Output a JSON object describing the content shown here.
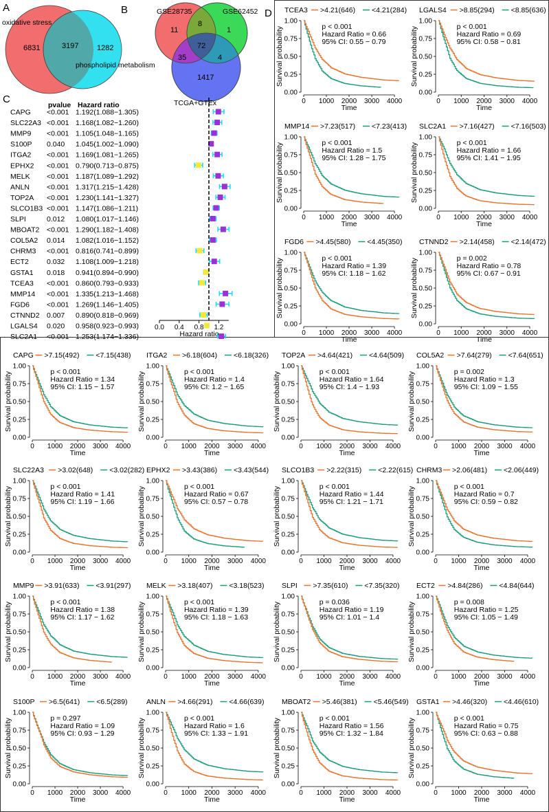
{
  "panel_labels": {
    "a": "A",
    "b": "B",
    "c": "C",
    "d": "D"
  },
  "colors": {
    "high": "#e8712b",
    "low": "#1a9b78",
    "venn_red": "#f26d6d",
    "venn_cyan": "#33e0f0",
    "venn_green": "#2fd84f",
    "venn_blue": "#5b6cf0",
    "hr_high": "#9b30d9",
    "hr_low": "#f3e93a",
    "hr_err": "#20d8f2"
  },
  "venn_a": {
    "set1_label": "oxidative stress",
    "set2_label": "phospholipid metabolism",
    "only1": "6831",
    "both": "3197",
    "only2": "1282"
  },
  "venn_b": {
    "set1_label": "GSE28735",
    "set2_label": "GSE62452",
    "set3_label": "TCGA+GTEx",
    "r1": "11",
    "r12": "8",
    "r2": "1",
    "r123": "72",
    "r13": "35",
    "r23": "4",
    "r3": "1417"
  },
  "chart_data": [
    {
      "type": "forest",
      "title": "",
      "col_pvalue": "pvalue",
      "col_hr": "Hazard ratio",
      "xlabel": "Hazard ratio",
      "xlim": [
        0.0,
        1.5
      ],
      "xticks": [
        "0.0",
        "0.4",
        "0.8",
        "1.2"
      ],
      "reference_line": 1.0,
      "rows": [
        {
          "gene": "CAPG",
          "p": "<0.001",
          "hr": 1.192,
          "lo": 1.088,
          "hi": 1.305,
          "text": "1.192(1.088−1.305)"
        },
        {
          "gene": "SLC22A3",
          "p": "<0.001",
          "hr": 1.168,
          "lo": 1.082,
          "hi": 1.26,
          "text": "1.168(1.082−1.260)"
        },
        {
          "gene": "MMP9",
          "p": "<0.001",
          "hr": 1.105,
          "lo": 1.048,
          "hi": 1.165,
          "text": "1.105(1.048−1.165)"
        },
        {
          "gene": "S100P",
          "p": "0.040",
          "hr": 1.045,
          "lo": 1.002,
          "hi": 1.09,
          "text": "1.045(1.002−1.090)"
        },
        {
          "gene": "ITGA2",
          "p": "<0.001",
          "hr": 1.169,
          "lo": 1.081,
          "hi": 1.265,
          "text": "1.169(1.081−1.265)"
        },
        {
          "gene": "EPHX2",
          "p": "<0.001",
          "hr": 0.79,
          "lo": 0.713,
          "hi": 0.875,
          "text": "0.790(0.713−0.875)"
        },
        {
          "gene": "MELK",
          "p": "<0.001",
          "hr": 1.187,
          "lo": 1.089,
          "hi": 1.292,
          "text": "1.187(1.089−1.292)"
        },
        {
          "gene": "ANLN",
          "p": "<0.001",
          "hr": 1.317,
          "lo": 1.215,
          "hi": 1.428,
          "text": "1.317(1.215−1.428)"
        },
        {
          "gene": "TOP2A",
          "p": "<0.001",
          "hr": 1.23,
          "lo": 1.141,
          "hi": 1.327,
          "text": "1.230(1.141−1.327)"
        },
        {
          "gene": "SLCO1B3",
          "p": "<0.001",
          "hr": 1.147,
          "lo": 1.086,
          "hi": 1.211,
          "text": "1.147(1.086−1.211)"
        },
        {
          "gene": "SLPI",
          "p": "0.012",
          "hr": 1.08,
          "lo": 1.017,
          "hi": 1.146,
          "text": "1.080(1.017−1.146)"
        },
        {
          "gene": "MBOAT2",
          "p": "<0.001",
          "hr": 1.29,
          "lo": 1.182,
          "hi": 1.408,
          "text": "1.290(1.182−1.408)"
        },
        {
          "gene": "COL5A2",
          "p": "0.014",
          "hr": 1.082,
          "lo": 1.016,
          "hi": 1.152,
          "text": "1.082(1.016−1.152)"
        },
        {
          "gene": "CHRM3",
          "p": "<0.001",
          "hr": 0.816,
          "lo": 0.741,
          "hi": 0.899,
          "text": "0.816(0.741−0.899)"
        },
        {
          "gene": "ECT2",
          "p": "0.032",
          "hr": 1.108,
          "lo": 1.009,
          "hi": 1.218,
          "text": "1.108(1.009−1.218)"
        },
        {
          "gene": "GSTA1",
          "p": "0.018",
          "hr": 0.941,
          "lo": 0.894,
          "hi": 0.99,
          "text": "0.941(0.894−0.990)"
        },
        {
          "gene": "TCEA3",
          "p": "<0.001",
          "hr": 0.86,
          "lo": 0.793,
          "hi": 0.933,
          "text": "0.860(0.793−0.933)"
        },
        {
          "gene": "MMP14",
          "p": "<0.001",
          "hr": 1.335,
          "lo": 1.213,
          "hi": 1.468,
          "text": "1.335(1.213−1.468)"
        },
        {
          "gene": "FGD6",
          "p": "<0.001",
          "hr": 1.269,
          "lo": 1.146,
          "hi": 1.405,
          "text": "1.269(1.146−1.405)"
        },
        {
          "gene": "CTNND2",
          "p": "0.007",
          "hr": 0.89,
          "lo": 0.818,
          "hi": 0.969,
          "text": "0.890(0.818−0.969)"
        },
        {
          "gene": "LGALS4",
          "p": "0.020",
          "hr": 0.958,
          "lo": 0.923,
          "hi": 0.993,
          "text": "0.958(0.923−0.993)"
        },
        {
          "gene": "SLC2A1",
          "p": "<0.001",
          "hr": 1.253,
          "lo": 1.174,
          "hi": 1.336,
          "text": "1.253(1.174−1.336)"
        }
      ]
    },
    {
      "type": "line",
      "subtype": "kaplan-meier",
      "ylabel": "Survival probability",
      "xlabel": "Time",
      "xlim": [
        0,
        4300
      ],
      "ylim": [
        0,
        1
      ],
      "xticks": [
        "0",
        "1000",
        "2000",
        "3000",
        "4000"
      ],
      "yticks": [
        "0.00",
        "0.25",
        "0.50",
        "0.75",
        "1.00"
      ],
      "plots": [
        {
          "gene": "TCEA3",
          "hi_label": ">4.21(646)",
          "lo_label": "<4.21(284)",
          "p_text": "p < 0.001",
          "hr_text": "Hazard Ratio = 0.66",
          "ci_text": "95% CI: 0.55 − 0.79",
          "hr": 0.66,
          "high_end": 4200,
          "low_end": 3400
        },
        {
          "gene": "LGALS4",
          "hi_label": ">8.85(294)",
          "lo_label": "<8.85(636)",
          "p_text": "p < 0.001",
          "hr_text": "Hazard Ratio = 0.69",
          "ci_text": "95% CI: 0.58 − 0.81",
          "hr": 0.69,
          "high_end": 4200,
          "low_end": 4150
        },
        {
          "gene": "MMP14",
          "hi_label": ">7.23(517)",
          "lo_label": "<7.23(413)",
          "p_text": "p < 0.001",
          "hr_text": "Hazard Ratio = 1.5",
          "ci_text": "95% CI: 1.28 − 1.75",
          "hr": 1.5,
          "high_end": 3500,
          "low_end": 4200
        },
        {
          "gene": "SLC2A1",
          "hi_label": ">7.16(427)",
          "lo_label": "<7.16(503)",
          "p_text": "p < 0.001",
          "hr_text": "Hazard Ratio = 1.66",
          "ci_text": "95% CI: 1.41 − 1.95",
          "hr": 1.66,
          "high_end": 4200,
          "low_end": 4200
        },
        {
          "gene": "FGD6",
          "hi_label": ">4.45(580)",
          "lo_label": "<4.45(350)",
          "p_text": "p < 0.001",
          "hr_text": "Hazard Ratio = 1.39",
          "ci_text": "95% CI: 1.18 − 1.62",
          "hr": 1.39,
          "high_end": 4200,
          "low_end": 4200
        },
        {
          "gene": "CTNND2",
          "hi_label": ">2.14(458)",
          "lo_label": "<2.14(472)",
          "p_text": "p = 0.002",
          "hr_text": "Hazard Ratio = 0.78",
          "ci_text": "95% CI: 0.67 − 0.91",
          "hr": 0.78,
          "high_end": 4200,
          "low_end": 4200
        },
        {
          "gene": "CAPG",
          "hi_label": ">7.15(492)",
          "lo_label": "<7.15(438)",
          "p_text": "p < 0.001",
          "hr_text": "Hazard Ratio = 1.34",
          "ci_text": "95% CI: 1.15 − 1.57",
          "hr": 1.34,
          "high_end": 4200,
          "low_end": 4200
        },
        {
          "gene": "ITGA2",
          "hi_label": ">6.18(604)",
          "lo_label": "<6.18(326)",
          "p_text": "p < 0.001",
          "hr_text": "Hazard Ratio = 1.4",
          "ci_text": "95% CI: 1.2 − 1.65",
          "hr": 1.4,
          "high_end": 4200,
          "low_end": 4200
        },
        {
          "gene": "TOP2A",
          "hi_label": ">4.64(421)",
          "lo_label": "<4.64(509)",
          "p_text": "p < 0.001",
          "hr_text": "Hazard Ratio = 1.64",
          "ci_text": "95% CI: 1.4 − 1.93",
          "hr": 1.64,
          "high_end": 4200,
          "low_end": 4200
        },
        {
          "gene": "COL5A2",
          "hi_label": ">7.64(279)",
          "lo_label": "<7.64(651)",
          "p_text": "p = 0.002",
          "hr_text": "Hazard Ratio = 1.3",
          "ci_text": "95% CI: 1.09 − 1.55",
          "hr": 1.3,
          "high_end": 4200,
          "low_end": 4200
        },
        {
          "gene": "SLC22A3",
          "hi_label": ">3.02(648)",
          "lo_label": "<3.02(282)",
          "p_text": "p < 0.001",
          "hr_text": "Hazard Ratio = 1.41",
          "ci_text": "95% CI: 1.19 − 1.66",
          "hr": 1.41,
          "high_end": 4200,
          "low_end": 4200
        },
        {
          "gene": "EPHX2",
          "hi_label": ">3.43(386)",
          "lo_label": "<3.43(544)",
          "p_text": "p < 0.001",
          "hr_text": "Hazard Ratio = 0.67",
          "ci_text": "95% CI: 0.57 − 0.78",
          "hr": 0.67,
          "high_end": 4200,
          "low_end": 3400
        },
        {
          "gene": "SLCO1B3",
          "hi_label": ">2.22(315)",
          "lo_label": "<2.22(615)",
          "p_text": "p < 0.001",
          "hr_text": "Hazard Ratio = 1.44",
          "ci_text": "95% CI: 1.21 − 1.71",
          "hr": 1.44,
          "high_end": 4200,
          "low_end": 4200
        },
        {
          "gene": "CHRM3",
          "hi_label": ">2.06(481)",
          "lo_label": "<2.06(449)",
          "p_text": "p < 0.001",
          "hr_text": "Hazard Ratio = 0.7",
          "ci_text": "95% CI: 0.59 − 0.82",
          "hr": 0.7,
          "high_end": 4200,
          "low_end": 4200
        },
        {
          "gene": "MMP9",
          "hi_label": ">3.91(633)",
          "lo_label": "<3.91(297)",
          "p_text": "p < 0.001",
          "hr_text": "Hazard Ratio = 1.38",
          "ci_text": "95% CI: 1.17 − 1.62",
          "hr": 1.38,
          "high_end": 3500,
          "low_end": 4200
        },
        {
          "gene": "MELK",
          "hi_label": ">3.18(407)",
          "lo_label": "<3.18(523)",
          "p_text": "p < 0.001",
          "hr_text": "Hazard Ratio = 1.39",
          "ci_text": "95% CI: 1.18 − 1.63",
          "hr": 1.39,
          "high_end": 4200,
          "low_end": 4200
        },
        {
          "gene": "SLPI",
          "hi_label": ">7.35(610)",
          "lo_label": "<7.35(320)",
          "p_text": "p = 0.036",
          "hr_text": "Hazard Ratio = 1.19",
          "ci_text": "95% CI: 1.01 − 1.4",
          "hr": 1.19,
          "high_end": 4200,
          "low_end": 4200
        },
        {
          "gene": "ECT2",
          "hi_label": ">4.84(286)",
          "lo_label": "<4.84(644)",
          "p_text": "p = 0.008",
          "hr_text": "Hazard Ratio = 1.25",
          "ci_text": "95% CI: 1.05 − 1.49",
          "hr": 1.25,
          "high_end": 3400,
          "low_end": 4200
        },
        {
          "gene": "S100P",
          "hi_label": ">6.5(641)",
          "lo_label": "<6.5(289)",
          "p_text": "p = 0.297",
          "hr_text": "Hazard Ratio = 1.09",
          "ci_text": "95% CI: 0.93 − 1.29",
          "hr": 1.09,
          "high_end": 4200,
          "low_end": 4200
        },
        {
          "gene": "ANLN",
          "hi_label": ">4.66(291)",
          "lo_label": "<4.66(639)",
          "p_text": "p < 0.001",
          "hr_text": "Hazard Ratio = 1.6",
          "ci_text": "95% CI: 1.33 − 1.91",
          "hr": 1.6,
          "high_end": 4200,
          "low_end": 4200
        },
        {
          "gene": "MBOAT2",
          "hi_label": ">5.46(381)",
          "lo_label": "<5.46(549)",
          "p_text": "p < 0.001",
          "hr_text": "Hazard Ratio = 1.56",
          "ci_text": "95% CI: 1.32 − 1.84",
          "hr": 1.56,
          "high_end": 4200,
          "low_end": 4200
        },
        {
          "gene": "GSTA1",
          "hi_label": ">4.46(320)",
          "lo_label": "<4.46(610)",
          "p_text": "p < 0.001",
          "hr_text": "Hazard Ratio = 0.75",
          "ci_text": "95% CI: 0.63 − 0.88",
          "hr": 0.75,
          "high_end": 4200,
          "low_end": 3400
        }
      ]
    }
  ]
}
